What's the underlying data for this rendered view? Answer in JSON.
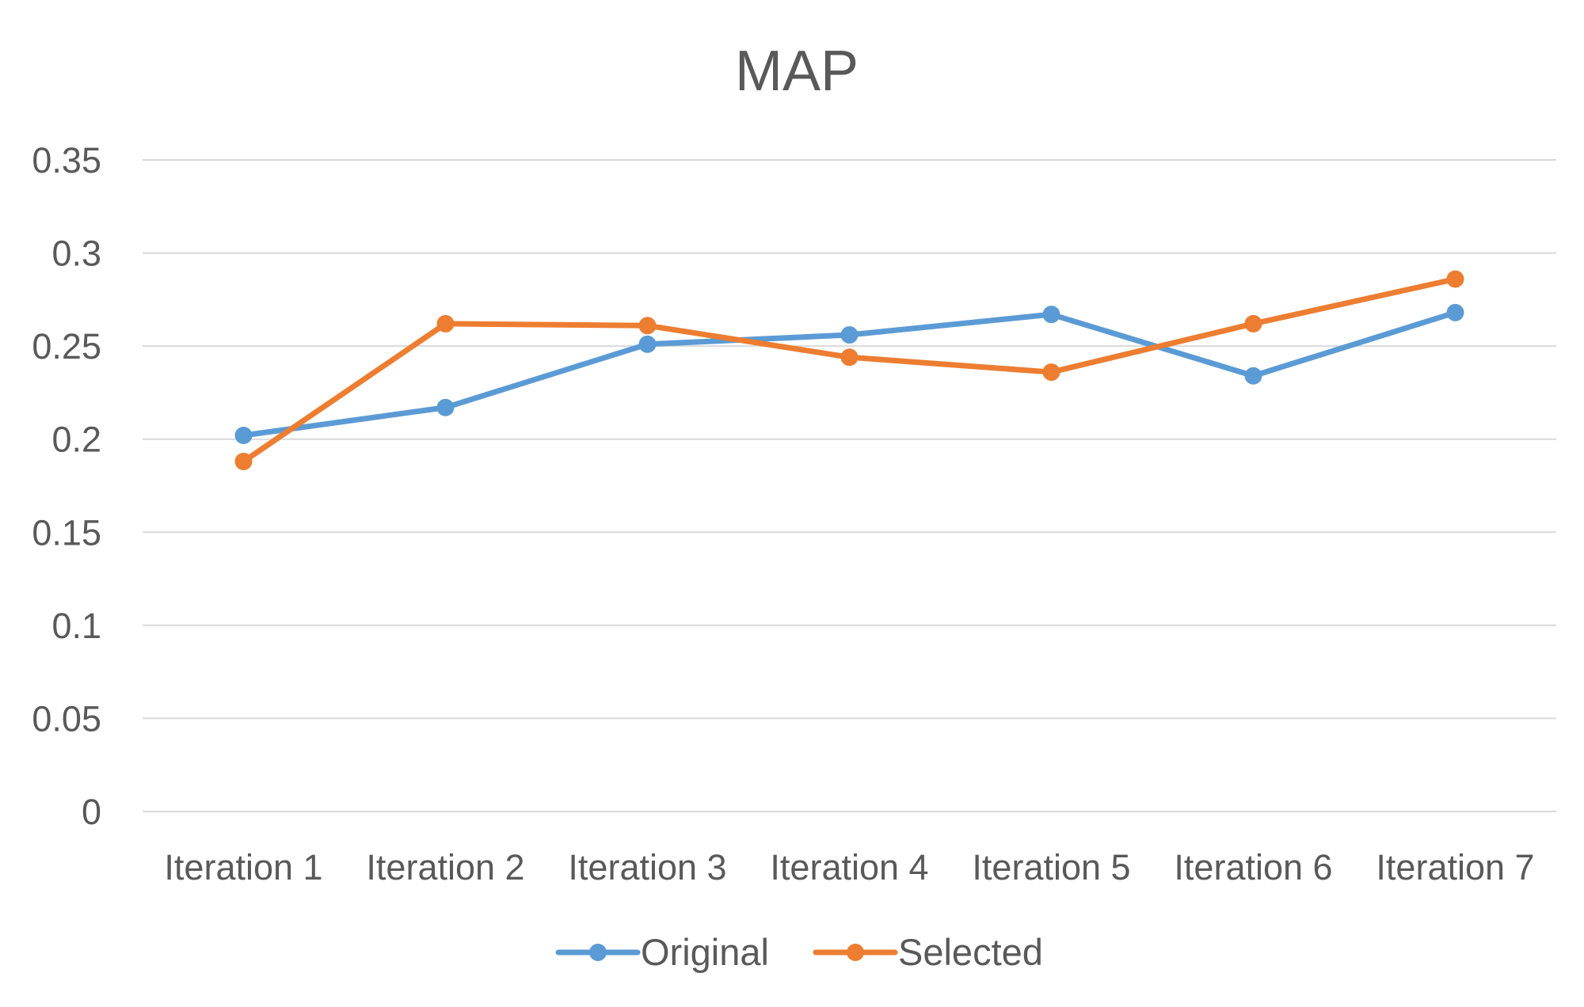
{
  "chart_data": {
    "type": "line",
    "title": "MAP",
    "xlabel": "",
    "ylabel": "",
    "categories": [
      "Iteration 1",
      "Iteration 2",
      "Iteration 3",
      "Iteration 4",
      "Iteration 5",
      "Iteration 6",
      "Iteration 7"
    ],
    "ylim": [
      0,
      0.35
    ],
    "yticks": [
      "0",
      "0.05",
      "0.1",
      "0.15",
      "0.2",
      "0.25",
      "0.3",
      "0.35"
    ],
    "grid": true,
    "legend_position": "bottom",
    "series": [
      {
        "name": "Original",
        "color": "#5b9bd5",
        "values": [
          0.202,
          0.217,
          0.251,
          0.256,
          0.267,
          0.234,
          0.268
        ]
      },
      {
        "name": "Selected",
        "color": "#ed7d31",
        "values": [
          0.188,
          0.262,
          0.261,
          0.244,
          0.236,
          0.262,
          0.286
        ]
      }
    ]
  }
}
